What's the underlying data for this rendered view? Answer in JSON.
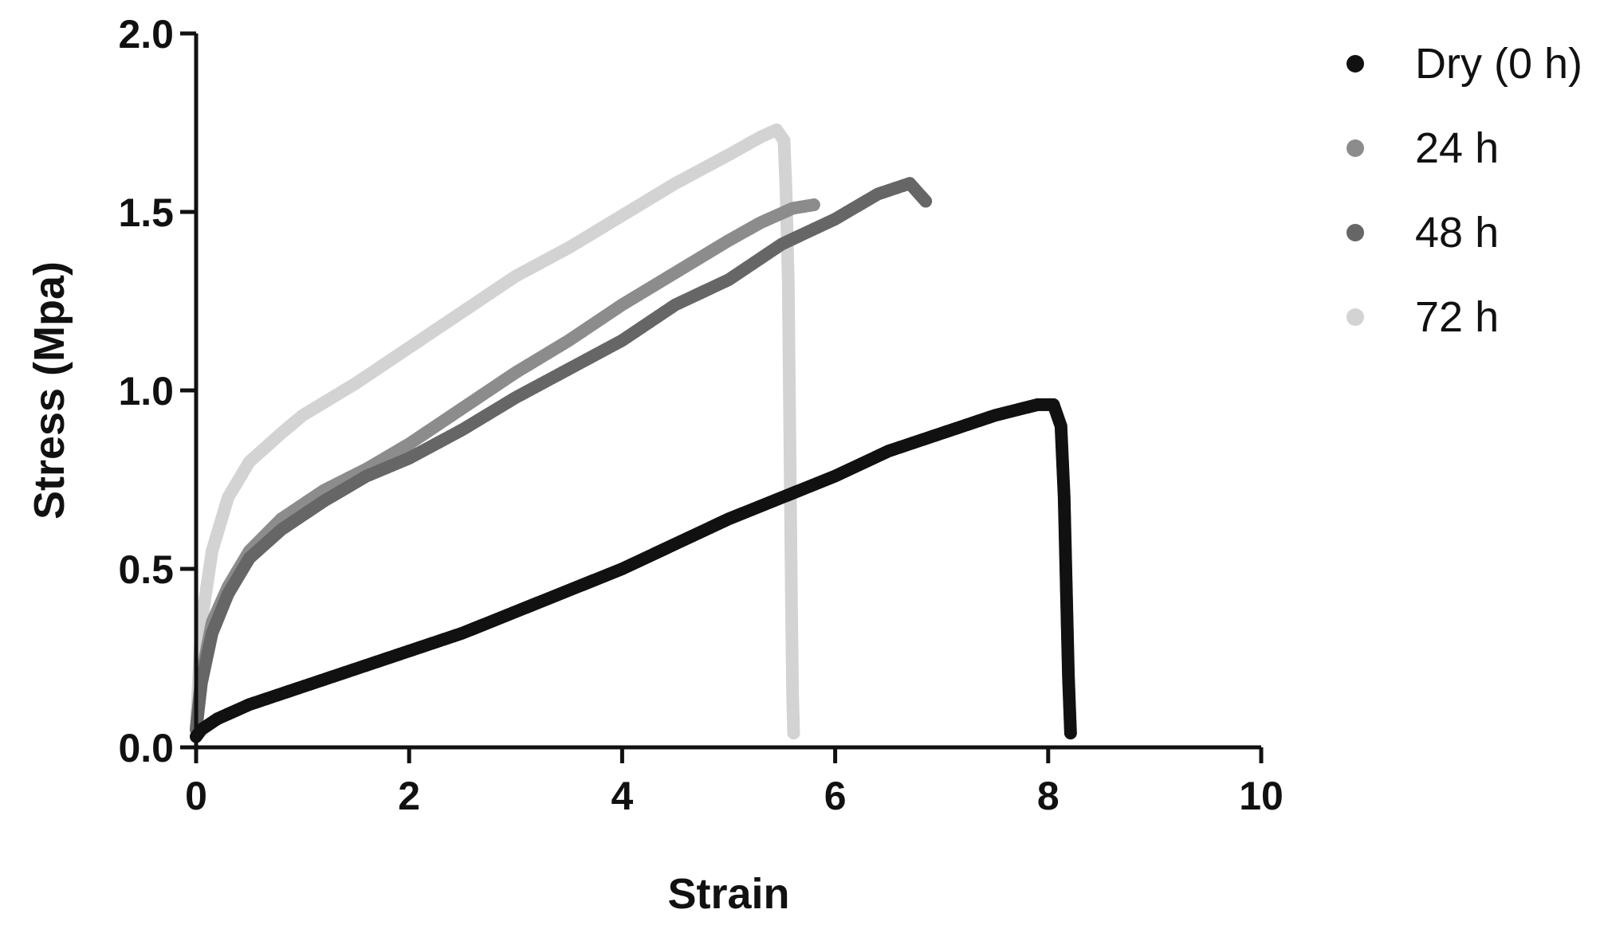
{
  "chart_data": {
    "type": "scatter",
    "xlabel": "Strain",
    "ylabel": "Stress (Mpa)",
    "xlim": [
      0,
      10
    ],
    "ylim": [
      0,
      2.0
    ],
    "x_ticks": [
      "0",
      "2",
      "4",
      "6",
      "8",
      "10"
    ],
    "y_ticks": [
      "0.0",
      "0.5",
      "1.0",
      "1.5",
      "2.0"
    ],
    "x_tick_values": [
      0,
      2,
      4,
      6,
      8,
      10
    ],
    "y_tick_values": [
      0,
      0.5,
      1.0,
      1.5,
      2.0
    ],
    "grid": false,
    "legend_position": "right",
    "series": [
      {
        "name": "Dry (0 h)",
        "color": "#111111",
        "points": [
          [
            0.0,
            0.03
          ],
          [
            0.05,
            0.05
          ],
          [
            0.2,
            0.08
          ],
          [
            0.5,
            0.12
          ],
          [
            1.0,
            0.17
          ],
          [
            1.5,
            0.22
          ],
          [
            2.0,
            0.27
          ],
          [
            2.5,
            0.32
          ],
          [
            3.0,
            0.38
          ],
          [
            3.5,
            0.44
          ],
          [
            4.0,
            0.5
          ],
          [
            4.5,
            0.57
          ],
          [
            5.0,
            0.64
          ],
          [
            5.5,
            0.7
          ],
          [
            6.0,
            0.76
          ],
          [
            6.5,
            0.83
          ],
          [
            7.0,
            0.88
          ],
          [
            7.5,
            0.93
          ],
          [
            7.9,
            0.96
          ],
          [
            8.05,
            0.96
          ],
          [
            8.12,
            0.9
          ],
          [
            8.15,
            0.7
          ],
          [
            8.17,
            0.45
          ],
          [
            8.19,
            0.2
          ],
          [
            8.21,
            0.04
          ]
        ]
      },
      {
        "name": "24 h",
        "color": "#8c8c8c",
        "points": [
          [
            0.0,
            0.05
          ],
          [
            0.05,
            0.2
          ],
          [
            0.15,
            0.35
          ],
          [
            0.3,
            0.45
          ],
          [
            0.5,
            0.55
          ],
          [
            0.8,
            0.64
          ],
          [
            1.2,
            0.72
          ],
          [
            1.6,
            0.78
          ],
          [
            2.0,
            0.85
          ],
          [
            2.5,
            0.95
          ],
          [
            3.0,
            1.05
          ],
          [
            3.5,
            1.14
          ],
          [
            4.0,
            1.24
          ],
          [
            4.5,
            1.33
          ],
          [
            5.0,
            1.42
          ],
          [
            5.3,
            1.47
          ],
          [
            5.6,
            1.51
          ],
          [
            5.8,
            1.52
          ]
        ]
      },
      {
        "name": "48 h",
        "color": "#666666",
        "points": [
          [
            0.0,
            0.05
          ],
          [
            0.05,
            0.18
          ],
          [
            0.15,
            0.32
          ],
          [
            0.3,
            0.43
          ],
          [
            0.5,
            0.53
          ],
          [
            0.8,
            0.61
          ],
          [
            1.2,
            0.69
          ],
          [
            1.6,
            0.76
          ],
          [
            2.0,
            0.81
          ],
          [
            2.5,
            0.89
          ],
          [
            3.0,
            0.98
          ],
          [
            3.5,
            1.06
          ],
          [
            4.0,
            1.14
          ],
          [
            4.5,
            1.24
          ],
          [
            5.0,
            1.31
          ],
          [
            5.5,
            1.41
          ],
          [
            6.0,
            1.48
          ],
          [
            6.4,
            1.55
          ],
          [
            6.7,
            1.58
          ],
          [
            6.85,
            1.53
          ]
        ]
      },
      {
        "name": "72 h",
        "color": "#d3d3d3",
        "points": [
          [
            0.0,
            0.05
          ],
          [
            0.05,
            0.35
          ],
          [
            0.15,
            0.55
          ],
          [
            0.3,
            0.7
          ],
          [
            0.5,
            0.8
          ],
          [
            0.8,
            0.88
          ],
          [
            1.0,
            0.93
          ],
          [
            1.5,
            1.02
          ],
          [
            2.0,
            1.12
          ],
          [
            2.5,
            1.22
          ],
          [
            3.0,
            1.32
          ],
          [
            3.5,
            1.4
          ],
          [
            4.0,
            1.49
          ],
          [
            4.5,
            1.58
          ],
          [
            5.0,
            1.66
          ],
          [
            5.3,
            1.71
          ],
          [
            5.45,
            1.73
          ],
          [
            5.52,
            1.7
          ],
          [
            5.54,
            1.55
          ],
          [
            5.56,
            1.3
          ],
          [
            5.57,
            1.0
          ],
          [
            5.58,
            0.7
          ],
          [
            5.59,
            0.4
          ],
          [
            5.6,
            0.15
          ],
          [
            5.61,
            0.04
          ]
        ]
      }
    ]
  }
}
